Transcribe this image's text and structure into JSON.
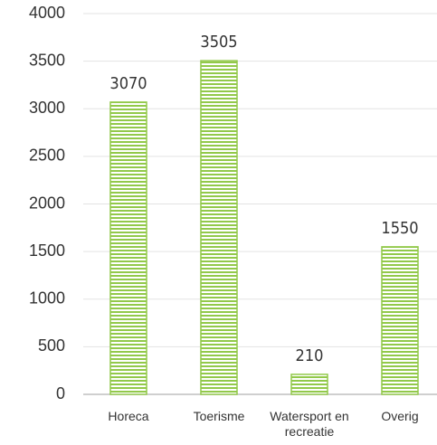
{
  "chart_data": {
    "type": "bar",
    "categories": [
      "Horeca",
      "Toerisme",
      "Watersport en recreatie",
      "Overig"
    ],
    "values": [
      3070,
      3505,
      210,
      1550
    ],
    "color": "#92c94a",
    "ylim": [
      0,
      4000
    ],
    "yticks": [
      0,
      500,
      1000,
      1500,
      2000,
      2500,
      3000,
      3500,
      4000
    ],
    "grid": true
  }
}
